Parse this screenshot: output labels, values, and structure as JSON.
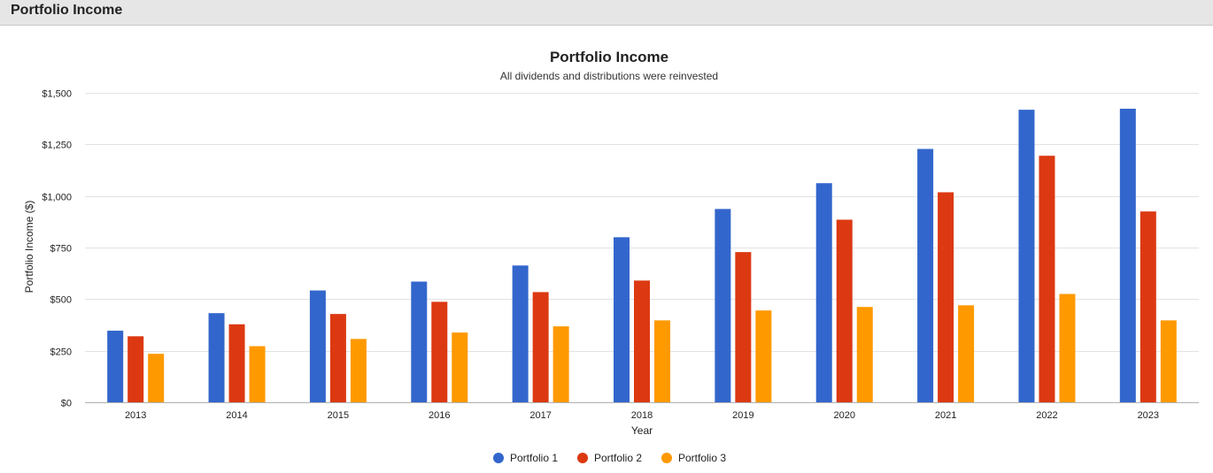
{
  "header": {
    "title": "Portfolio Income"
  },
  "chart_data": {
    "type": "bar",
    "title": "Portfolio Income",
    "subtitle": "All dividends and distributions were reinvested",
    "xlabel": "Year",
    "ylabel": "Portfolio Income ($)",
    "categories": [
      "2013",
      "2014",
      "2015",
      "2016",
      "2017",
      "2018",
      "2019",
      "2020",
      "2021",
      "2022",
      "2023"
    ],
    "ylim": [
      0,
      1500
    ],
    "yticks": [
      0,
      250,
      500,
      750,
      1000,
      1250,
      1500
    ],
    "ytick_labels": [
      "$0",
      "$250",
      "$500",
      "$750",
      "$1,000",
      "$1,250",
      "$1,500"
    ],
    "grid": true,
    "legend_position": "bottom",
    "series": [
      {
        "name": "Portfolio 1",
        "color": "#3366cc",
        "values": [
          347,
          432,
          542,
          585,
          663,
          800,
          937,
          1062,
          1228,
          1418,
          1423
        ]
      },
      {
        "name": "Portfolio 2",
        "color": "#dc3912",
        "values": [
          320,
          378,
          428,
          487,
          534,
          590,
          728,
          885,
          1018,
          1195,
          925
        ]
      },
      {
        "name": "Portfolio 3",
        "color": "#ff9900",
        "values": [
          235,
          272,
          307,
          338,
          368,
          397,
          445,
          462,
          470,
          525,
          397
        ]
      }
    ]
  }
}
